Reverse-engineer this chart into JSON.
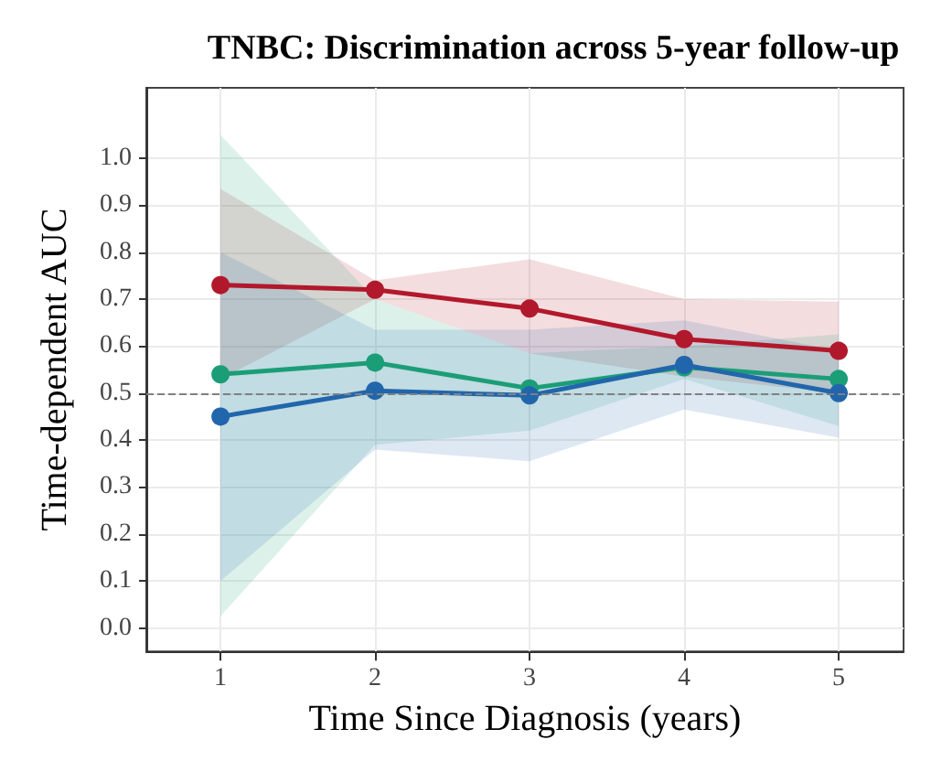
{
  "chart_data": {
    "type": "line",
    "title": "TNBC: Discrimination across 5-year follow-up",
    "xlabel": "Time Since Diagnosis (years)",
    "ylabel": "Time-dependent AUC",
    "x": [
      1,
      2,
      3,
      4,
      5
    ],
    "series": [
      {
        "color": "#b2182b",
        "values": [
          0.73,
          0.72,
          0.68,
          0.615,
          0.59
        ],
        "lower": [
          0.53,
          0.7,
          0.585,
          0.535,
          0.5
        ],
        "upper": [
          0.935,
          0.74,
          0.785,
          0.7,
          0.695
        ]
      },
      {
        "color": "#1b9e77",
        "values": [
          0.54,
          0.565,
          0.51,
          0.555,
          0.53
        ],
        "lower": [
          0.025,
          0.39,
          0.42,
          0.53,
          0.43
        ],
        "upper": [
          1.05,
          0.7,
          0.585,
          0.6,
          0.625
        ]
      },
      {
        "color": "#2166ac",
        "values": [
          0.45,
          0.505,
          0.495,
          0.56,
          0.5
        ],
        "lower": [
          0.1,
          0.38,
          0.355,
          0.465,
          0.405
        ],
        "upper": [
          0.8,
          0.635,
          0.635,
          0.655,
          0.59
        ]
      }
    ],
    "xlim": [
      0.52,
      5.42
    ],
    "xticks": [
      1,
      2,
      3,
      4,
      5
    ],
    "ylim": [
      -0.05,
      1.15
    ],
    "yticks": [
      {
        "value": 0,
        "label": "0.0"
      },
      0.1,
      0.2,
      0.3,
      0.4,
      0.5,
      0.6,
      0.7,
      0.8,
      0.9,
      {
        "value": 1,
        "label": "1.0"
      }
    ],
    "ref_lines": [
      {
        "axis": "y",
        "value": 0.5,
        "color": "#808080",
        "line_style": "dashed"
      }
    ],
    "grid": true,
    "marker": "circle",
    "line_style": "solid"
  }
}
